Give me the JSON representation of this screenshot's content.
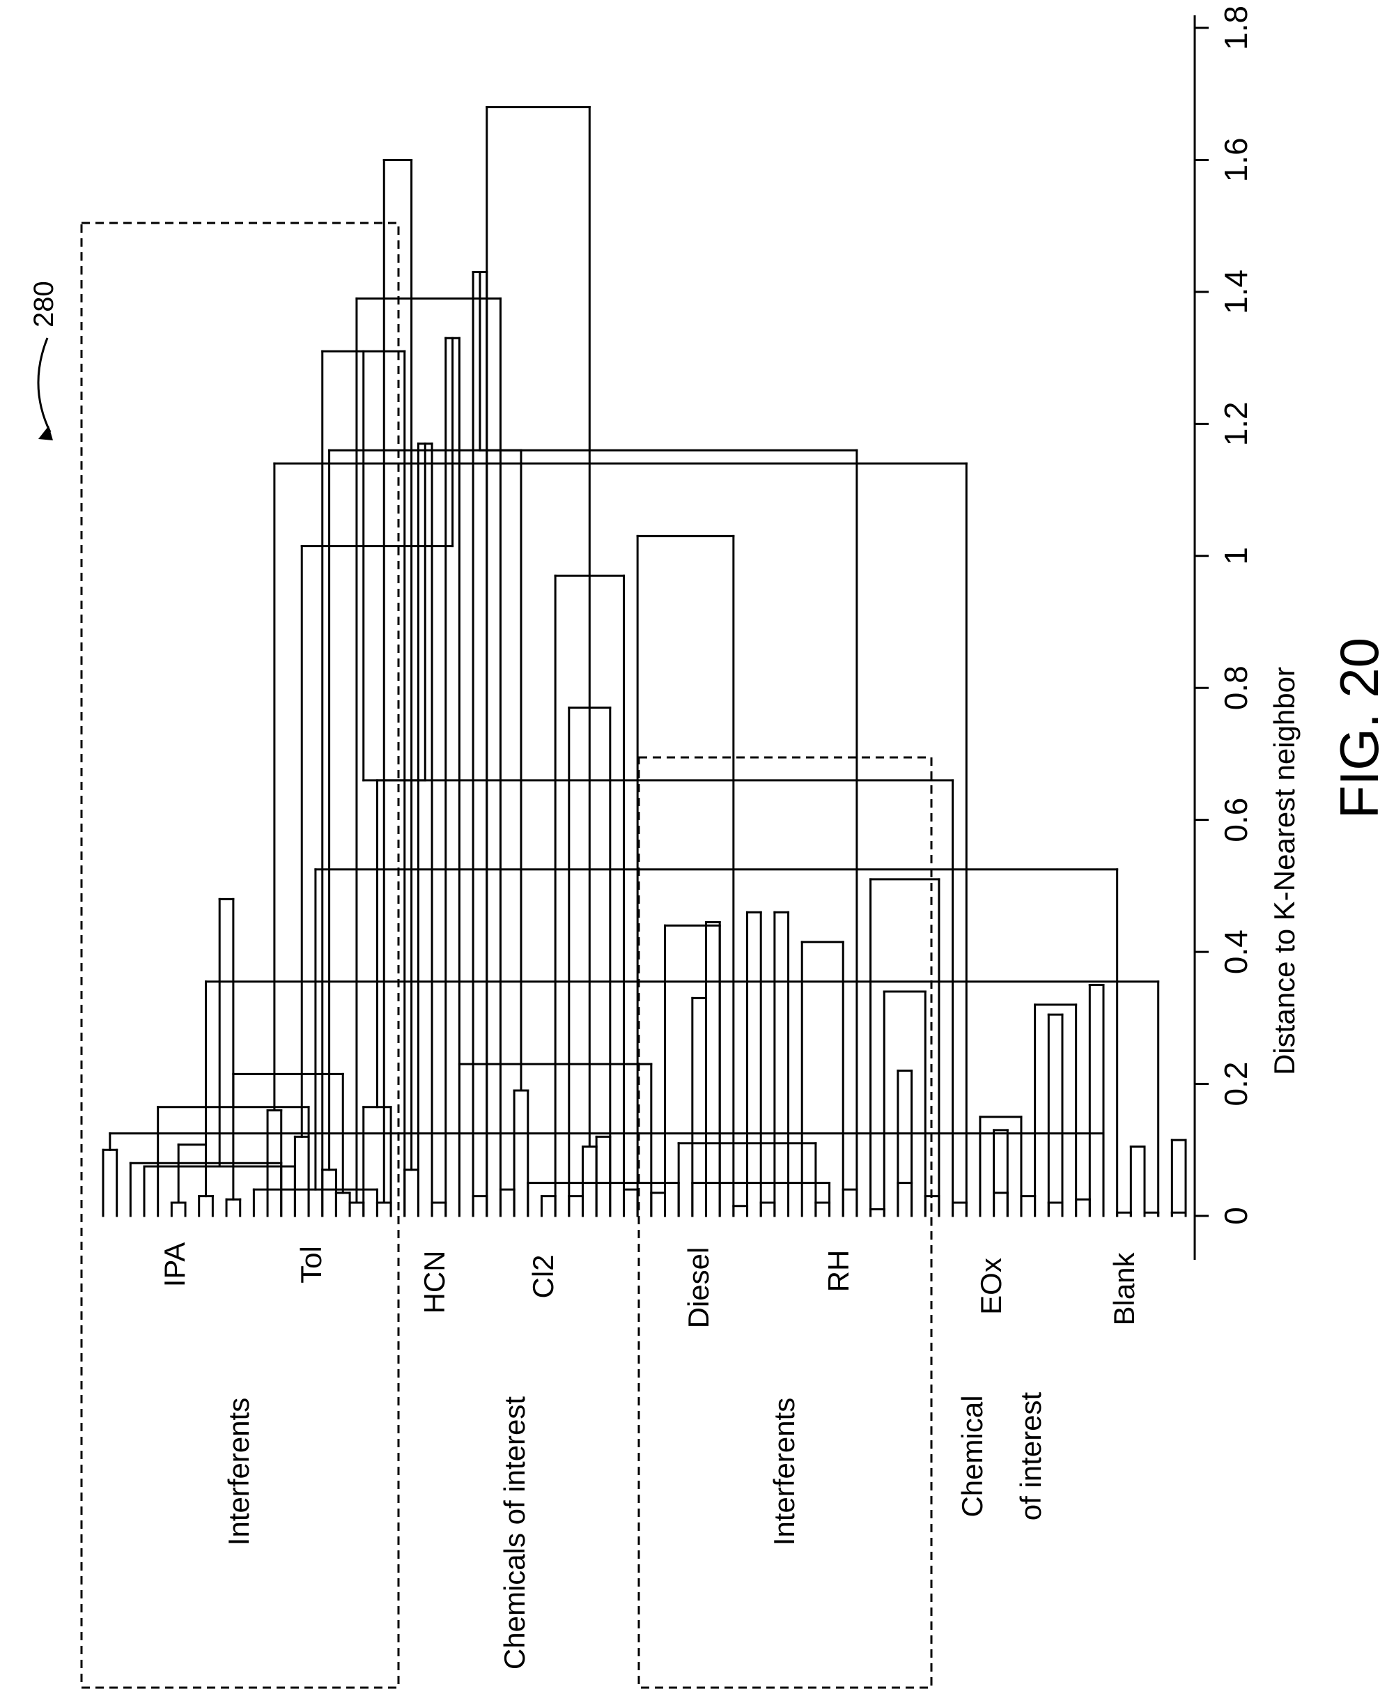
{
  "chart_data": {
    "type": "dendrogram",
    "title": "FIG. 20",
    "reference_numeral": "280",
    "xlabel": "Distance to K-Nearest neighbor",
    "xlim": [
      0,
      1.8
    ],
    "xticks": [
      "0",
      "0.2",
      "0.4",
      "0.6",
      "0.8",
      "1",
      "1.2",
      "1.4",
      "1.6",
      "1.8"
    ],
    "xtick_values": [
      0,
      0.2,
      0.4,
      0.6,
      0.8,
      1.0,
      1.2,
      1.4,
      1.6,
      1.8
    ],
    "leaves": [
      "IPA",
      "IPA",
      "IPA",
      "IPA",
      "IPA",
      "IPA",
      "IPA",
      "IPA",
      "IPA",
      "IPA",
      "IPA",
      "IPA",
      "Tol",
      "Tol",
      "Tol",
      "Tol",
      "Tol",
      "Tol",
      "Tol",
      "Tol",
      "Tol",
      "Tol",
      "Tol",
      "Tol",
      "HCN",
      "HCN",
      "HCN",
      "HCN",
      "HCN",
      "HCN",
      "HCN",
      "HCN",
      "Cl2",
      "Cl2",
      "Cl2",
      "Cl2",
      "Cl2",
      "Cl2",
      "Cl2",
      "Cl2",
      "Cl2",
      "Cl2",
      "Cl2",
      "Cl2",
      "Diesel",
      "Diesel",
      "Diesel",
      "Diesel",
      "Diesel",
      "Diesel",
      "Diesel",
      "Diesel",
      "RH",
      "RH",
      "RH",
      "RH",
      "RH",
      "RH",
      "RH",
      "RH",
      "RH",
      "RH",
      "RH",
      "RH",
      "RH",
      "EOx",
      "EOx",
      "EOx",
      "EOx",
      "EOx",
      "EOx",
      "EOx",
      "EOx",
      "EOx",
      "Blank",
      "Blank",
      "Blank",
      "Blank",
      "Blank",
      "Blank"
    ],
    "merges": [
      [
        0,
        1,
        0.1
      ],
      [
        13,
        2,
        0.08
      ],
      [
        14,
        3,
        0.075
      ],
      [
        15,
        4,
        0.165
      ],
      [
        5,
        6,
        0.02
      ],
      [
        7,
        8,
        0.03
      ],
      [
        17,
        18,
        0.035
      ],
      [
        9,
        10,
        0.025
      ],
      [
        20,
        11,
        0.04
      ],
      [
        19,
        21,
        0.165
      ],
      [
        16,
        22,
        1.31
      ],
      [
        23,
        24,
        1.17
      ],
      [
        25,
        26,
        1.33
      ],
      [
        27,
        28,
        1.43
      ],
      [
        12,
        13,
        0.16
      ],
      [
        14,
        15,
        0.12
      ],
      [
        30,
        31,
        0.19
      ],
      [
        16,
        17,
        0.07
      ],
      [
        18,
        19,
        0.02
      ],
      [
        20,
        21,
        0.02
      ],
      [
        22,
        23,
        0.07
      ],
      [
        35,
        36,
        0.105
      ],
      [
        34,
        37,
        0.77
      ],
      [
        33,
        38,
        0.97
      ],
      [
        24,
        25,
        0.02
      ],
      [
        40,
        26,
        0.23
      ],
      [
        27,
        28,
        0.03
      ],
      [
        29,
        30,
        0.04
      ],
      [
        31,
        42,
        0.05
      ],
      [
        43,
        44,
        0.33
      ],
      [
        41,
        45,
        0.44
      ],
      [
        32,
        33,
        0.03
      ],
      [
        34,
        35,
        0.03
      ],
      [
        47,
        48,
        0.46
      ],
      [
        36,
        37,
        0.12
      ],
      [
        49,
        50,
        0.46
      ],
      [
        38,
        39,
        0.04
      ],
      [
        40,
        41,
        0.035
      ],
      [
        42,
        52,
        0.11
      ],
      [
        43,
        53,
        0.05
      ],
      [
        51,
        54,
        0.415
      ],
      [
        44,
        45,
        0.445
      ],
      [
        46,
        47,
        0.015
      ],
      [
        48,
        49,
        0.02
      ],
      [
        58,
        59,
        0.22
      ],
      [
        57,
        60,
        0.34
      ],
      [
        56,
        61,
        0.51
      ],
      [
        52,
        53,
        0.02
      ],
      [
        54,
        55,
        0.04
      ],
      [
        56,
        57,
        0.01
      ],
      [
        58,
        59,
        0.05
      ],
      [
        65,
        66,
        0.13
      ],
      [
        64,
        67,
        0.15
      ],
      [
        60,
        61,
        0.03
      ],
      [
        62,
        63,
        0.02
      ],
      [
        69,
        70,
        0.305
      ],
      [
        68,
        71,
        0.32
      ],
      [
        72,
        73,
        0.35
      ],
      [
        65,
        66,
        0.035
      ],
      [
        67,
        68,
        0.03
      ],
      [
        75,
        76,
        0.105
      ],
      [
        69,
        70,
        0.02
      ],
      [
        71,
        72,
        0.025
      ],
      [
        78,
        79,
        0.115
      ],
      [
        73,
        80,
        0.125
      ],
      [
        77,
        81,
        0.355
      ],
      [
        74,
        75,
        0.005
      ],
      [
        76,
        77,
        0.005
      ],
      [
        78,
        79,
        0.005
      ],
      [
        84,
        85,
        0.108
      ],
      [
        83,
        86,
        0.215
      ],
      [
        82,
        87,
        0.48
      ],
      [
        74,
        88,
        0.525
      ],
      [
        62,
        89,
        0.66
      ],
      [
        90,
        91,
        0.66
      ],
      [
        39,
        46,
        1.03
      ],
      [
        93,
        55,
        1.16
      ],
      [
        94,
        63,
        1.14
      ],
      [
        95,
        92,
        1.015
      ],
      [
        96,
        97,
        1.16
      ],
      [
        98,
        29,
        1.39
      ],
      [
        99,
        100,
        1.6
      ],
      [
        101,
        28,
        1.68
      ]
    ],
    "groups": [
      {
        "label": "Interferents",
        "members": [
          "IPA",
          "Tol"
        ],
        "boxed": true
      },
      {
        "label": "Chemicals of interest",
        "members": [
          "HCN",
          "Cl2"
        ],
        "boxed": false
      },
      {
        "label": "Interferents",
        "members": [
          "Diesel",
          "RH"
        ],
        "boxed": true
      },
      {
        "label": "Chemical\nof interest",
        "members": [
          "EOx",
          "Blank"
        ],
        "boxed": false
      }
    ],
    "class_labels": [
      "IPA",
      "Tol",
      "HCN",
      "Cl2",
      "Diesel",
      "RH",
      "EOx",
      "Blank"
    ],
    "group_labels": {
      "interferents_1": "Interferents",
      "chemicals_of_interest": "Chemicals of interest",
      "interferents_2": "Interferents",
      "chemical_of_interest_line1": "Chemical",
      "chemical_of_interest_line2": "of interest"
    }
  }
}
